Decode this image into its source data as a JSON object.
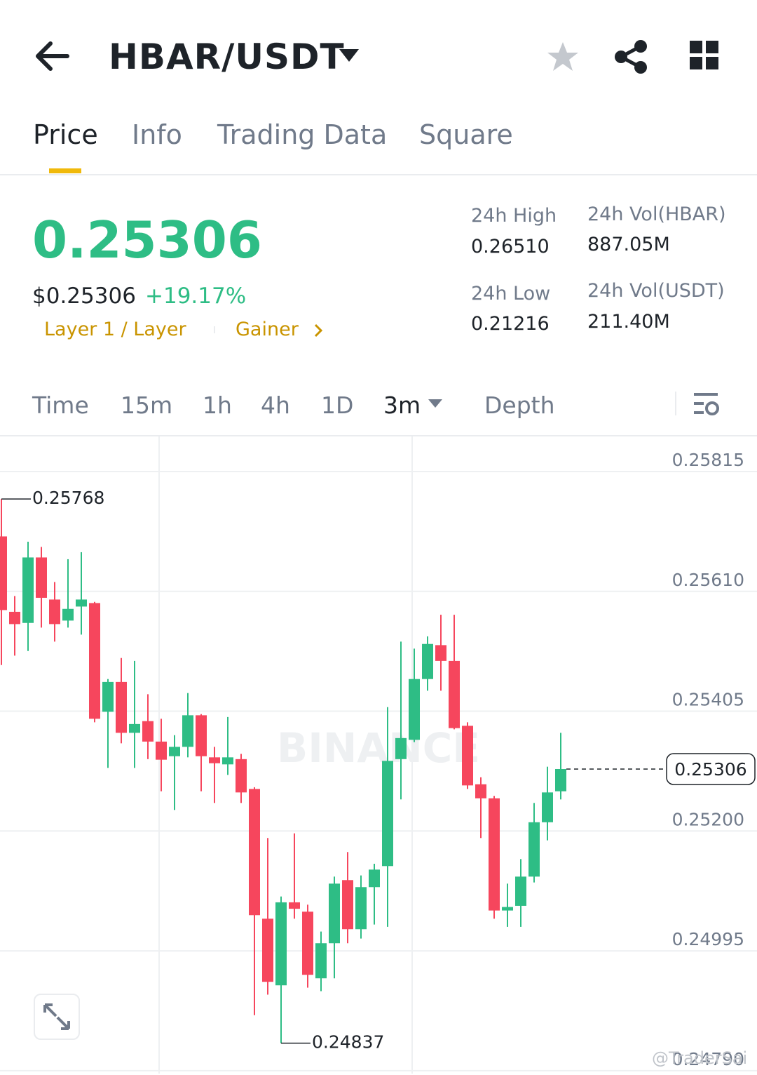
{
  "header": {
    "pair": "HBAR/USDT"
  },
  "tabs": [
    "Price",
    "Info",
    "Trading Data",
    "Square"
  ],
  "price": {
    "last": "0.25306",
    "usd": "$0.25306",
    "change": "+19.17%",
    "tags": [
      "Layer 1 / Layer",
      "Gainer"
    ]
  },
  "stats": [
    {
      "label": "24h High",
      "value": "0.26510"
    },
    {
      "label": "24h Vol(HBAR)",
      "value": "887.05M"
    },
    {
      "label": "24h Low",
      "value": "0.21216"
    },
    {
      "label": "24h Vol(USDT)",
      "value": "211.40M"
    }
  ],
  "intervals": [
    "Time",
    "15m",
    "1h",
    "4h",
    "1D",
    "3m",
    "Depth"
  ],
  "footer_watermark": "@TraderSai",
  "chart_data": {
    "type": "candlestick",
    "watermark": "BINANCE",
    "up_color": "#2ebd85",
    "down_color": "#f6465d",
    "open": [
      0.25704,
      0.25575,
      0.25556,
      0.25668,
      0.25596,
      0.2556,
      0.25584,
      0.2559,
      0.25404,
      0.25455,
      0.25368,
      0.25388,
      0.25353,
      0.25328,
      0.25344,
      0.25398,
      0.25326,
      0.25314,
      0.25323,
      0.25272,
      0.2505,
      0.24936,
      0.25078,
      0.25062,
      0.24948,
      0.25008,
      0.25116,
      0.25032,
      0.25104,
      0.2514,
      0.25323,
      0.25356,
      0.2546,
      0.25518,
      0.25491,
      0.2538,
      0.2528,
      0.25256,
      0.25064,
      0.25072,
      0.25122,
      0.25215,
      0.25268
    ],
    "high": [
      0.25768,
      0.25602,
      0.25695,
      0.25686,
      0.25626,
      0.25665,
      0.25677,
      0.25592,
      0.2546,
      0.25496,
      0.25491,
      0.25434,
      0.25392,
      0.25364,
      0.25436,
      0.254,
      0.25344,
      0.25395,
      0.25332,
      0.25275,
      0.25188,
      0.25088,
      0.25196,
      0.25074,
      0.25028,
      0.25122,
      0.25164,
      0.25124,
      0.25144,
      0.25412,
      0.25524,
      0.25512,
      0.25533,
      0.2557,
      0.2557,
      0.25386,
      0.25292,
      0.2526,
      0.2511,
      0.25152,
      0.25248,
      0.2531,
      0.25368
    ],
    "low": [
      0.25484,
      0.255,
      0.25508,
      0.25548,
      0.25524,
      0.25548,
      0.25536,
      0.25386,
      0.25308,
      0.2535,
      0.25308,
      0.25323,
      0.25268,
      0.25236,
      0.25326,
      0.25268,
      0.25248,
      0.25296,
      0.25248,
      0.24885,
      0.2492,
      0.24837,
      0.2505,
      0.24932,
      0.24926,
      0.24948,
      0.25008,
      0.25016,
      0.2504,
      0.25036,
      0.25254,
      0.25352,
      0.2544,
      0.2544,
      0.25374,
      0.25272,
      0.25188,
      0.2505,
      0.25036,
      0.25036,
      0.25112,
      0.25184,
      0.25254
    ],
    "close": [
      0.25578,
      0.25554,
      0.25668,
      0.25599,
      0.25554,
      0.2558,
      0.25596,
      0.25392,
      0.25455,
      0.25368,
      0.25383,
      0.25353,
      0.25322,
      0.25344,
      0.25398,
      0.25328,
      0.25316,
      0.25326,
      0.25266,
      0.25056,
      0.24942,
      0.25078,
      0.25067,
      0.24954,
      0.25008,
      0.2511,
      0.25032,
      0.25104,
      0.25134,
      0.2532,
      0.25359,
      0.2546,
      0.2552,
      0.25491,
      0.25376,
      0.25278,
      0.25256,
      0.25064,
      0.2507,
      0.25122,
      0.25215,
      0.25266,
      0.25306
    ],
    "ylim": [
      0.24785,
      0.25875
    ],
    "yticks": [
      0.25815,
      {
        "value": 0.2561,
        "label": "0.25610"
      },
      0.25405,
      {
        "value": 0.252,
        "label": "0.25200"
      },
      0.24995,
      {
        "value": 0.2479,
        "label": "0.24790"
      }
    ],
    "grid": true
  }
}
